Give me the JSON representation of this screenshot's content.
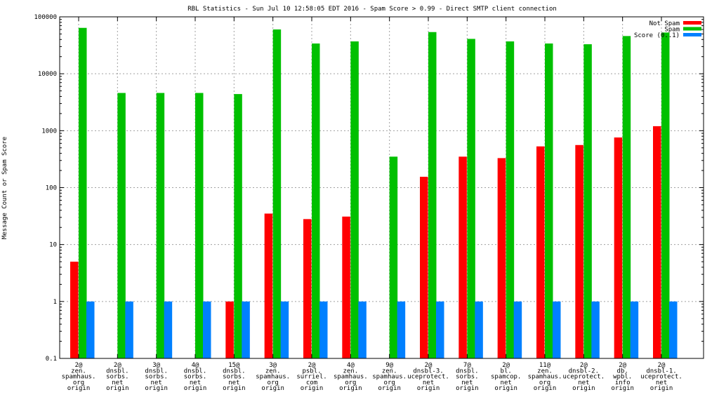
{
  "chart_data": {
    "type": "bar",
    "title": "RBL Statistics - Sun Jul 10 12:58:05 EDT 2016 - Spam Score > 0.99 - Direct SMTP client connection",
    "xlabel": "",
    "ylabel": "Message Count or Spam Score",
    "yscale": "log",
    "ylim": [
      0.1,
      100000
    ],
    "yticks": [
      "0.1",
      "1",
      "10",
      "100",
      "1000",
      "10000",
      "100000"
    ],
    "grid": true,
    "legend_position": "top-right",
    "categories": [
      [
        "2@",
        "zen.",
        "spamhaus.",
        "org",
        "origin"
      ],
      [
        "2@",
        "dnsbl.",
        "sorbs.",
        "net",
        "origin"
      ],
      [
        "3@",
        "dnsbl.",
        "sorbs.",
        "net",
        "origin"
      ],
      [
        "4@",
        "dnsbl.",
        "sorbs.",
        "net",
        "origin"
      ],
      [
        "15@",
        "dnsbl.",
        "sorbs.",
        "net",
        "origin"
      ],
      [
        "3@",
        "zen.",
        "spamhaus.",
        "org",
        "origin"
      ],
      [
        "2@",
        "psbl.",
        "surriel.",
        "com",
        "origin"
      ],
      [
        "4@",
        "zen.",
        "spamhaus.",
        "org",
        "origin"
      ],
      [
        "9@",
        "zen.",
        "spamhaus.",
        "org",
        "origin"
      ],
      [
        "2@",
        "dnsbl-3.",
        "uceprotect.",
        "net",
        "origin"
      ],
      [
        "7@",
        "dnsbl.",
        "sorbs.",
        "net",
        "origin"
      ],
      [
        "2@",
        "bl.",
        "spamcop.",
        "net",
        "origin"
      ],
      [
        "11@",
        "zen.",
        "spamhaus.",
        "org",
        "origin"
      ],
      [
        "2@",
        "dnsbl-2.",
        "uceprotect.",
        "net",
        "origin"
      ],
      [
        "2@",
        "db.",
        "wpbl.",
        "info",
        "origin"
      ],
      [
        "2@",
        "dnsbl-1.",
        "uceprotect.",
        "net",
        "origin"
      ]
    ],
    "series": [
      {
        "name": "Not Spam",
        "color": "#ff0000",
        "values": [
          5,
          null,
          null,
          null,
          1,
          35,
          28,
          31,
          null,
          155,
          350,
          330,
          530,
          560,
          760,
          1200
        ]
      },
      {
        "name": "Spam",
        "color": "#00c000",
        "values": [
          64000,
          4600,
          4600,
          4600,
          4400,
          60000,
          34000,
          37000,
          350,
          54000,
          41000,
          37000,
          34000,
          33000,
          46000,
          53000
        ]
      },
      {
        "name": "Score (0..1)",
        "color": "#0080ff",
        "values": [
          1,
          1,
          1,
          1,
          1,
          1,
          1,
          1,
          1,
          1,
          1,
          1,
          1,
          1,
          1,
          1
        ]
      }
    ]
  }
}
